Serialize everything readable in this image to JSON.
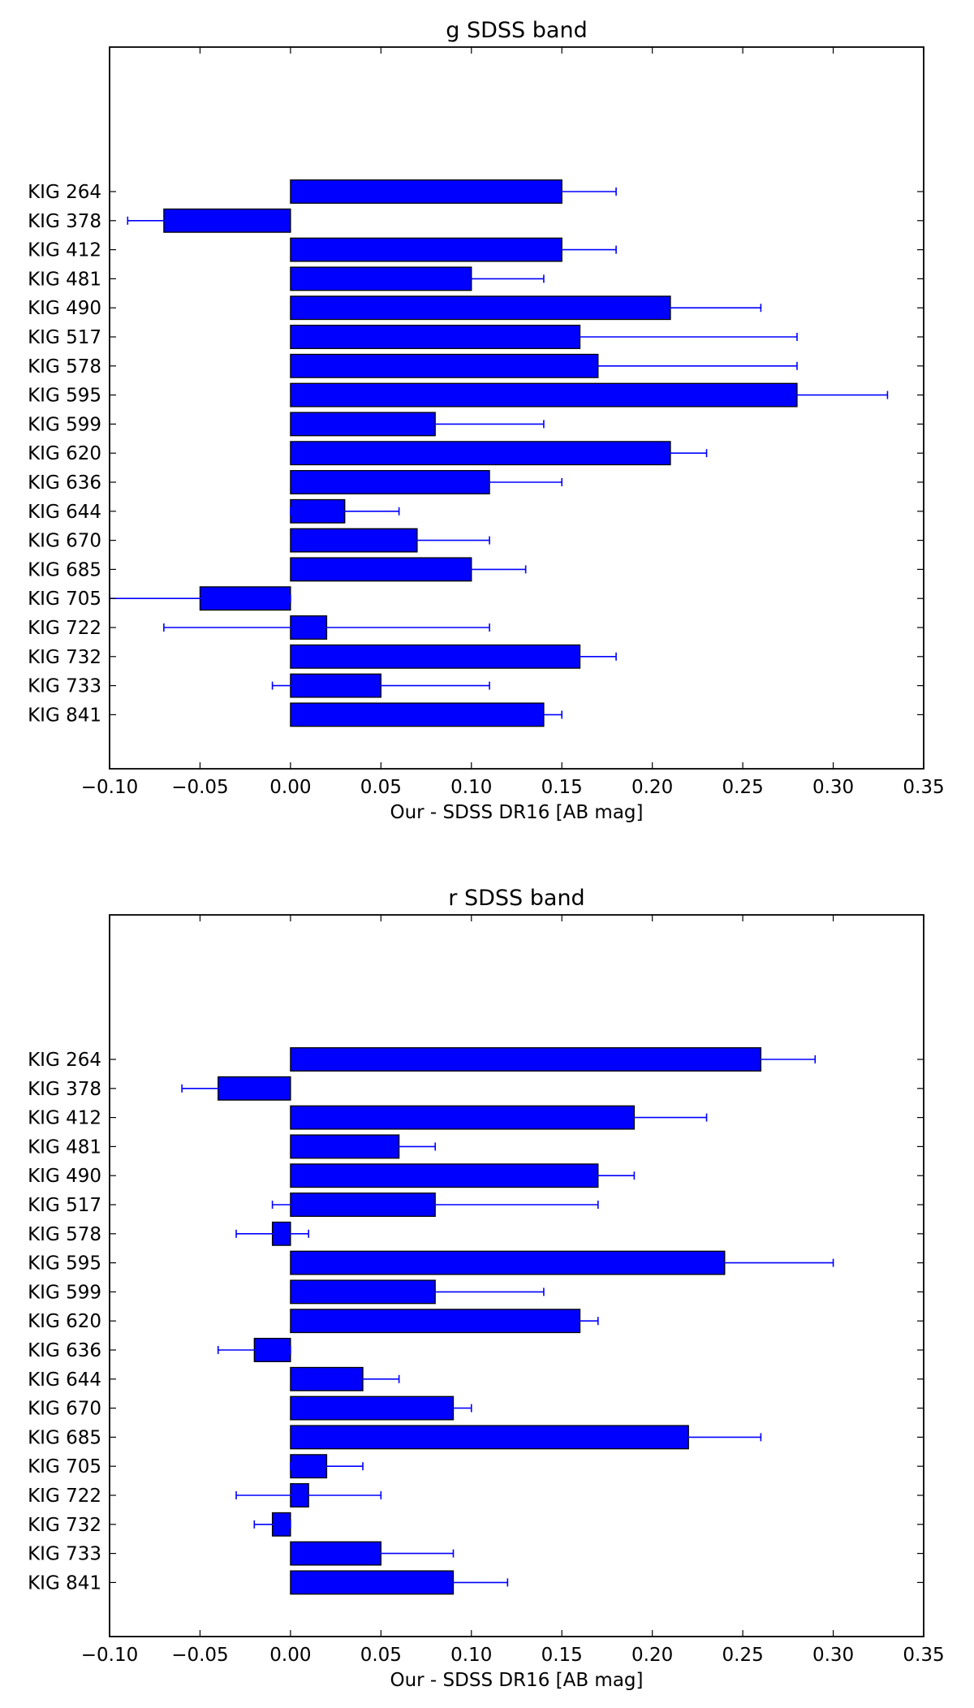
{
  "chart_data": [
    {
      "type": "bar",
      "orientation": "horizontal",
      "title": "g SDSS band",
      "xlabel": "Our - SDSS DR16 [AB mag]",
      "ylabel": "",
      "xlim": [
        -0.1,
        0.35
      ],
      "xticks": [
        "−0.10",
        "−0.05",
        "0.00",
        "0.05",
        "0.10",
        "0.15",
        "0.20",
        "0.25",
        "0.30",
        "0.35"
      ],
      "xtick_values": [
        -0.1,
        -0.05,
        0,
        0.05,
        0.1,
        0.15,
        0.2,
        0.25,
        0.3,
        0.35
      ],
      "grid": false,
      "bar_color": "#0000ff",
      "error_color": "#0000ff",
      "categories": [
        "KIG 264",
        "KIG 378",
        "KIG 412",
        "KIG 481",
        "KIG 490",
        "KIG 517",
        "KIG 578",
        "KIG 595",
        "KIG 599",
        "KIG 620",
        "KIG 636",
        "KIG 644",
        "KIG 670",
        "KIG 685",
        "KIG 705",
        "KIG 722",
        "KIG 732",
        "KIG 733",
        "KIG 841"
      ],
      "values": [
        0.15,
        -0.07,
        0.15,
        0.1,
        0.21,
        0.16,
        0.17,
        0.28,
        0.08,
        0.21,
        0.11,
        0.03,
        0.07,
        0.1,
        -0.05,
        0.02,
        0.16,
        0.05,
        0.14
      ],
      "errors": [
        0.03,
        0.02,
        0.03,
        0.04,
        0.05,
        0.12,
        0.11,
        0.05,
        0.06,
        0.02,
        0.04,
        0.03,
        0.04,
        0.03,
        0.05,
        0.09,
        0.02,
        0.06,
        0.01
      ]
    },
    {
      "type": "bar",
      "orientation": "horizontal",
      "title": "r SDSS band",
      "xlabel": "Our - SDSS DR16 [AB mag]",
      "ylabel": "",
      "xlim": [
        -0.1,
        0.35
      ],
      "xticks": [
        "−0.10",
        "−0.05",
        "0.00",
        "0.05",
        "0.10",
        "0.15",
        "0.20",
        "0.25",
        "0.30",
        "0.35"
      ],
      "xtick_values": [
        -0.1,
        -0.05,
        0,
        0.05,
        0.1,
        0.15,
        0.2,
        0.25,
        0.3,
        0.35
      ],
      "grid": false,
      "bar_color": "#0000ff",
      "error_color": "#0000ff",
      "categories": [
        "KIG 264",
        "KIG 378",
        "KIG 412",
        "KIG 481",
        "KIG 490",
        "KIG 517",
        "KIG 578",
        "KIG 595",
        "KIG 599",
        "KIG 620",
        "KIG 636",
        "KIG 644",
        "KIG 670",
        "KIG 685",
        "KIG 705",
        "KIG 722",
        "KIG 732",
        "KIG 733",
        "KIG 841"
      ],
      "values": [
        0.26,
        -0.04,
        0.19,
        0.06,
        0.17,
        0.08,
        -0.01,
        0.24,
        0.08,
        0.16,
        -0.02,
        0.04,
        0.09,
        0.22,
        0.02,
        0.01,
        -0.01,
        0.05,
        0.09
      ],
      "errors": [
        0.03,
        0.02,
        0.04,
        0.02,
        0.02,
        0.09,
        0.02,
        0.06,
        0.06,
        0.01,
        0.02,
        0.02,
        0.01,
        0.04,
        0.02,
        0.04,
        0.01,
        0.04,
        0.03
      ]
    }
  ]
}
